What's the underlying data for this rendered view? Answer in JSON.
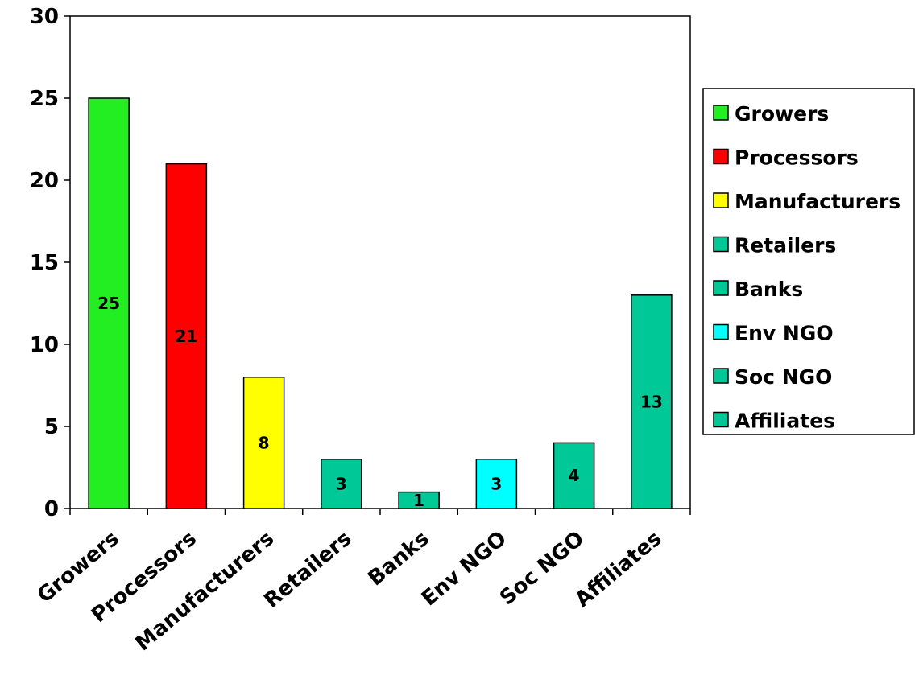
{
  "chart_data": {
    "type": "bar",
    "categories": [
      "Growers",
      "Processors",
      "Manufacturers",
      "Retailers",
      "Banks",
      "Env NGO",
      "Soc NGO",
      "Affiliates"
    ],
    "values": [
      25,
      21,
      8,
      3,
      1,
      3,
      4,
      13
    ],
    "data_labels": [
      "25",
      "21",
      "8",
      "3",
      "1",
      "3",
      "4",
      "13"
    ],
    "colors": [
      "#22ee22",
      "#ff0000",
      "#ffff00",
      "#00c896",
      "#00c896",
      "#00ffff",
      "#00c896",
      "#00c896"
    ],
    "ylim": [
      0,
      30
    ],
    "yticks": [
      0,
      5,
      10,
      15,
      20,
      25,
      30
    ],
    "grid": false,
    "legend": {
      "position": "right",
      "entries": [
        "Growers",
        "Processors",
        "Manufacturers",
        "Retailers",
        "Banks",
        "Env NGO",
        "Soc NGO",
        "Affiliates"
      ]
    }
  }
}
